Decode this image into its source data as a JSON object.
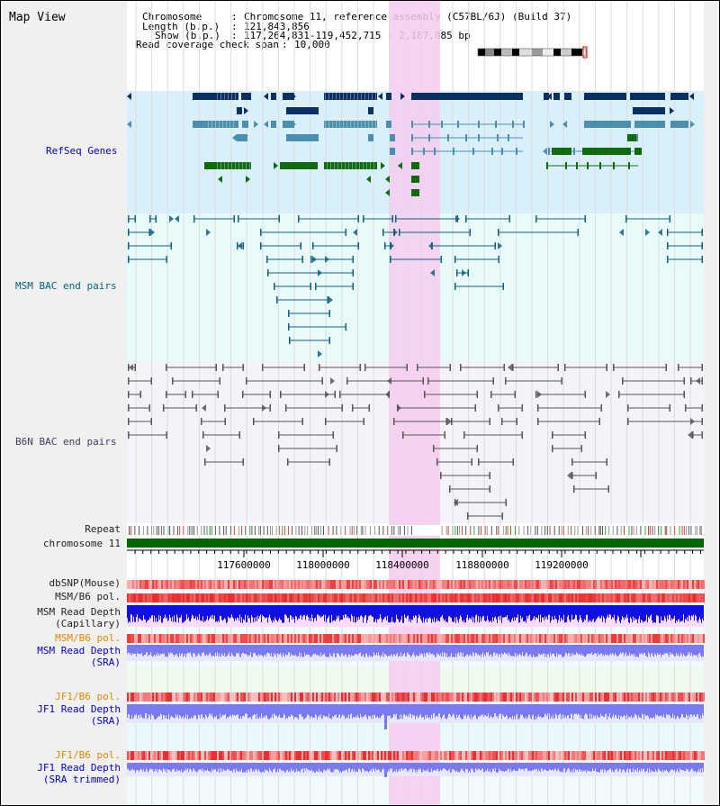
{
  "view_title": "Map View",
  "info": {
    "chromosome_key": "Chromosome",
    "chromosome_val": "Chromosome 11, reference assembly (C57BL/6J) (Build 37)",
    "length_key": "Length (b.p.)",
    "length_val": "121,843,856",
    "show_key": "Show (b.p.)",
    "show_val": "117,264,831-119,452,715 : 2,187,885 bp",
    "coverage_key": "Read coverage check span",
    "coverage_val": "10,000"
  },
  "tracks": {
    "refseq": "RefSeq Genes",
    "msm_bac": "MSM BAC end pairs",
    "b6n_bac": "B6N BAC end pairs",
    "repeat": "Repeat",
    "chromosome": "chromosome 11",
    "dbsnp": "dbSNP(Mouse)",
    "msm_b6_pol_1": "MSM/B6 pol.",
    "msm_depth_cap_1": "MSM Read Depth",
    "msm_depth_cap_2": "(Capillary)",
    "msm_b6_pol_2": "MSM/B6 pol.",
    "msm_depth_sra_1": "MSM Read Depth",
    "msm_depth_sra_2": "(SRA)",
    "jf1_pol_1": "JF1/B6 pol.",
    "jf1_depth_sra_1": "JF1 Read Depth",
    "jf1_depth_sra_2": "(SRA)",
    "jf1_pol_2": "JF1/B6 pol.",
    "jf1_depth_trim_1": "JF1 Read Depth",
    "jf1_depth_trim_2": "(SRA trimmed)"
  },
  "axis": {
    "ticks": [
      "117600000",
      "118000000",
      "118400000",
      "118800000",
      "119200000"
    ]
  },
  "colors": {
    "refseq_bg": "#d9f0fb",
    "msm_bac_bg": "#e8fafa",
    "b6n_bac_bg": "#f3f3f9",
    "highlight": "#f5ccee",
    "chromosome_bar": "#006600",
    "gene_dark": "#0b2e63",
    "gene_mid": "#4a8fb0",
    "gene_green": "#106b10",
    "msm_line": "#106080",
    "b6n_line": "#555555",
    "snp_red": "#f06060",
    "depth_blue": "#1010e0",
    "sra_blue": "#7a7af0",
    "orange_label": "#e08a00",
    "blue_label": "#0000cc",
    "teal_label": "#006677"
  }
}
